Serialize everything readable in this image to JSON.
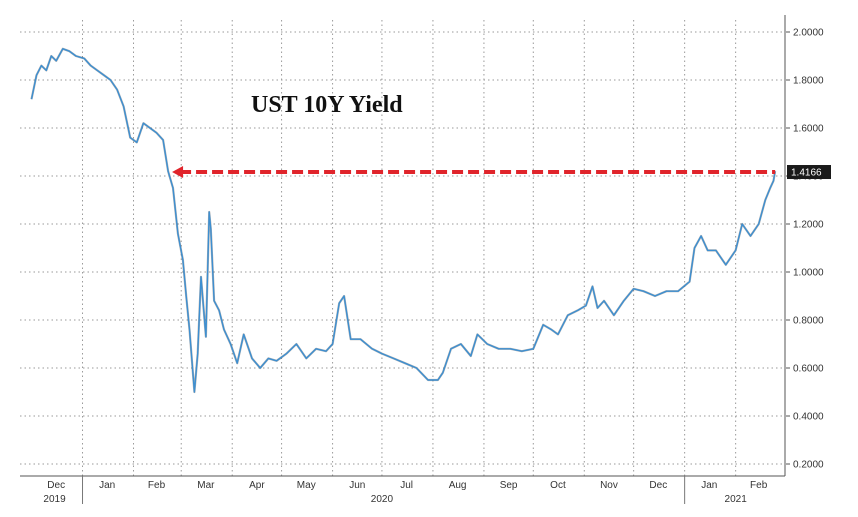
{
  "chart_data": {
    "type": "line",
    "title": "UST 10Y Yield",
    "xlabel": "",
    "ylabel": "",
    "ylim": [
      0.15,
      2.05
    ],
    "y_ticks": [
      "2.0000",
      "1.8000",
      "1.6000",
      "1.4000",
      "1.2000",
      "1.0000",
      "0.8000",
      "0.6000",
      "0.4000",
      "0.2000"
    ],
    "y_tick_values": [
      2.0,
      1.8,
      1.6,
      1.4,
      1.2,
      1.0,
      0.8,
      0.6,
      0.4,
      0.2
    ],
    "x_month_labels": [
      "Dec",
      "Jan",
      "Feb",
      "Mar",
      "Apr",
      "May",
      "Jun",
      "Jul",
      "Aug",
      "Sep",
      "Oct",
      "Nov",
      "Dec",
      "Jan",
      "Feb"
    ],
    "x_year_labels": [
      "2019",
      "2020",
      "2021"
    ],
    "grid": true,
    "last_value_label": "1.4166",
    "last_value": 1.4166,
    "colors": {
      "line": "#3d8fd1",
      "arrow": "#e0242b",
      "last_value_box": "#1a1a1a",
      "grid": "#9a9a9a"
    },
    "series": [
      {
        "x": [
          "2019-12-01",
          "2019-12-04",
          "2019-12-07",
          "2019-12-10",
          "2019-12-13",
          "2019-12-16",
          "2019-12-20",
          "2019-12-24",
          "2019-12-28",
          "2020-01-02",
          "2020-01-06",
          "2020-01-10",
          "2020-01-14",
          "2020-01-18",
          "2020-01-22",
          "2020-01-26",
          "2020-01-30",
          "2020-02-03",
          "2020-02-07",
          "2020-02-11",
          "2020-02-15",
          "2020-02-19",
          "2020-02-22",
          "2020-02-25",
          "2020-02-28",
          "2020-03-02",
          "2020-03-04",
          "2020-03-06",
          "2020-03-09",
          "2020-03-11",
          "2020-03-13",
          "2020-03-16",
          "2020-03-18",
          "2020-03-19",
          "2020-03-21",
          "2020-03-24",
          "2020-03-27",
          "2020-03-31",
          "2020-04-04",
          "2020-04-08",
          "2020-04-13",
          "2020-04-18",
          "2020-04-23",
          "2020-04-28",
          "2020-05-04",
          "2020-05-10",
          "2020-05-16",
          "2020-05-22",
          "2020-05-28",
          "2020-06-01",
          "2020-06-05",
          "2020-06-08",
          "2020-06-12",
          "2020-06-18",
          "2020-06-25",
          "2020-07-01",
          "2020-07-08",
          "2020-07-15",
          "2020-07-22",
          "2020-07-29",
          "2020-08-04",
          "2020-08-07",
          "2020-08-12",
          "2020-08-18",
          "2020-08-24",
          "2020-08-28",
          "2020-09-03",
          "2020-09-10",
          "2020-09-17",
          "2020-09-24",
          "2020-10-01",
          "2020-10-07",
          "2020-10-12",
          "2020-10-16",
          "2020-10-22",
          "2020-10-28",
          "2020-11-02",
          "2020-11-06",
          "2020-11-09",
          "2020-11-13",
          "2020-11-19",
          "2020-11-25",
          "2020-12-01",
          "2020-12-07",
          "2020-12-14",
          "2020-12-21",
          "2020-12-28",
          "2021-01-04",
          "2021-01-07",
          "2021-01-11",
          "2021-01-15",
          "2021-01-20",
          "2021-01-26",
          "2021-02-01",
          "2021-02-05",
          "2021-02-10",
          "2021-02-15",
          "2021-02-19",
          "2021-02-22",
          "2021-02-24",
          "2021-02-25"
        ],
        "y": [
          1.72,
          1.82,
          1.86,
          1.84,
          1.9,
          1.88,
          1.93,
          1.92,
          1.9,
          1.89,
          1.86,
          1.84,
          1.82,
          1.8,
          1.76,
          1.69,
          1.56,
          1.54,
          1.62,
          1.6,
          1.58,
          1.55,
          1.42,
          1.35,
          1.16,
          1.05,
          0.9,
          0.76,
          0.5,
          0.66,
          0.98,
          0.73,
          1.25,
          1.18,
          0.88,
          0.84,
          0.76,
          0.7,
          0.62,
          0.74,
          0.64,
          0.6,
          0.64,
          0.63,
          0.66,
          0.7,
          0.64,
          0.68,
          0.67,
          0.7,
          0.87,
          0.9,
          0.72,
          0.72,
          0.68,
          0.66,
          0.64,
          0.62,
          0.6,
          0.55,
          0.55,
          0.58,
          0.68,
          0.7,
          0.65,
          0.74,
          0.7,
          0.68,
          0.68,
          0.67,
          0.68,
          0.78,
          0.76,
          0.74,
          0.82,
          0.84,
          0.86,
          0.94,
          0.85,
          0.88,
          0.82,
          0.88,
          0.93,
          0.92,
          0.9,
          0.92,
          0.92,
          0.96,
          1.1,
          1.15,
          1.09,
          1.09,
          1.03,
          1.09,
          1.2,
          1.15,
          1.2,
          1.3,
          1.35,
          1.38,
          1.42
        ]
      }
    ]
  }
}
